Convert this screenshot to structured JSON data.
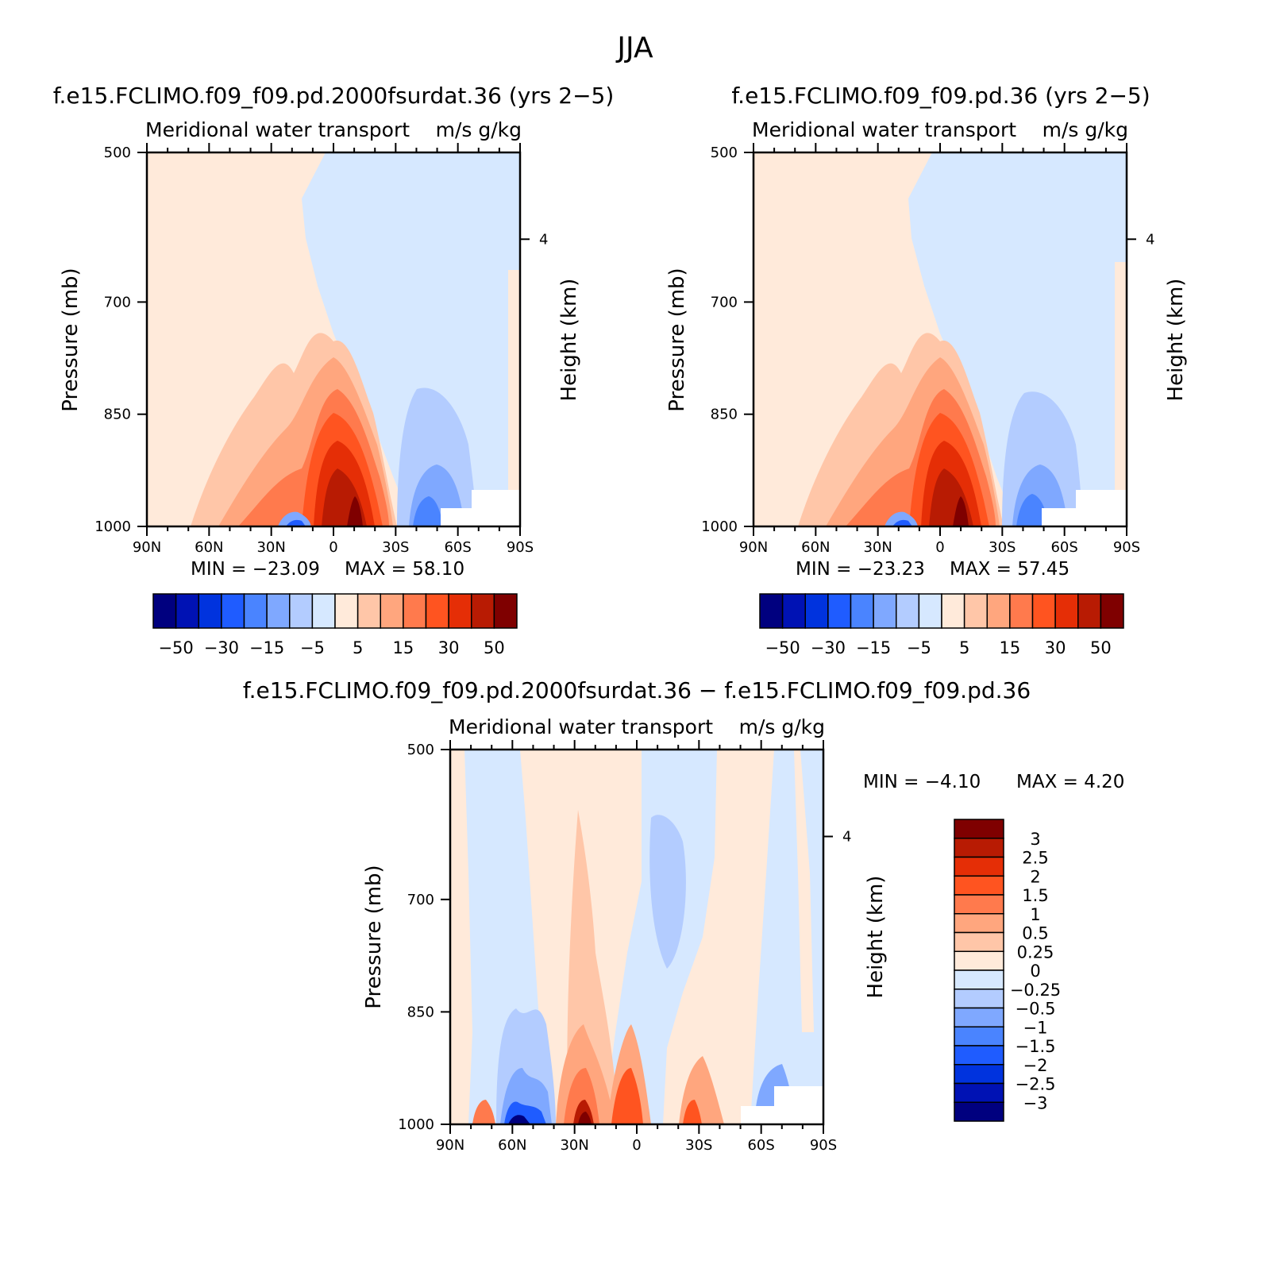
{
  "figure": {
    "title": "JJA"
  },
  "colors": {
    "fill_levels": [
      "#00007f",
      "#0012b4",
      "#0033de",
      "#1f5cff",
      "#4a84ff",
      "#7fa8ff",
      "#b3ccff",
      "#d6e8ff",
      "#ffeada",
      "#ffc6a8",
      "#ffa67e",
      "#ff7a4d",
      "#ff5420",
      "#e52e06",
      "#b81b03",
      "#7f0000"
    ]
  },
  "chart_data": [
    {
      "type": "heatmap",
      "id": "top-left",
      "title": "f.e15.FCLIMO.f09_f09.pd.2000fsurdat.36 (yrs 2−5)",
      "subtitle_left": "Meridional water transport",
      "subtitle_right": "m/s g/kg",
      "ylabel": "Pressure (mb)",
      "ylabel_right": "Height (km)",
      "x_tick_labels": [
        "90N",
        "60N",
        "30N",
        "0",
        "30S",
        "60S",
        "90S"
      ],
      "x_values": [
        90,
        60,
        30,
        0,
        -30,
        -60,
        -90
      ],
      "y_tick_labels": [
        "500",
        "700",
        "850",
        "1000"
      ],
      "y_values": [
        500,
        700,
        850,
        1000
      ],
      "y_right_tick_labels": [
        "4"
      ],
      "ylim": [
        500,
        1000
      ],
      "xlim": [
        90,
        -90
      ],
      "min_text": "MIN = −23.09",
      "max_text": "MAX =  58.10",
      "min": -23.09,
      "max": 58.1,
      "colorbar": {
        "orientation": "horizontal",
        "labels": [
          "−50",
          "−30",
          "−15",
          "−5",
          "5",
          "15",
          "30",
          "50"
        ]
      },
      "features": [
        {
          "kind": "blob",
          "lat": 0,
          "p": 1000,
          "value": 58.1
        },
        {
          "kind": "blob",
          "lat": -52,
          "p": 1000,
          "value": -20
        },
        {
          "kind": "blob",
          "lat": 18,
          "p": 1000,
          "value": -23.09
        }
      ]
    },
    {
      "type": "heatmap",
      "id": "top-right",
      "title": "f.e15.FCLIMO.f09_f09.pd.36 (yrs 2−5)",
      "subtitle_left": "Meridional water transport",
      "subtitle_right": "m/s g/kg",
      "ylabel": "Pressure (mb)",
      "ylabel_right": "Height (km)",
      "x_tick_labels": [
        "90N",
        "60N",
        "30N",
        "0",
        "30S",
        "60S",
        "90S"
      ],
      "x_values": [
        90,
        60,
        30,
        0,
        -30,
        -60,
        -90
      ],
      "y_tick_labels": [
        "500",
        "700",
        "850",
        "1000"
      ],
      "y_values": [
        500,
        700,
        850,
        1000
      ],
      "y_right_tick_labels": [
        "4"
      ],
      "ylim": [
        500,
        1000
      ],
      "xlim": [
        90,
        -90
      ],
      "min_text": "MIN = −23.23",
      "max_text": "MAX =  57.45",
      "min": -23.23,
      "max": 57.45,
      "colorbar": {
        "orientation": "horizontal",
        "labels": [
          "−50",
          "−30",
          "−15",
          "−5",
          "5",
          "15",
          "30",
          "50"
        ]
      },
      "features": [
        {
          "kind": "blob",
          "lat": 0,
          "p": 1000,
          "value": 57.45
        },
        {
          "kind": "blob",
          "lat": -45,
          "p": 1000,
          "value": -20
        },
        {
          "kind": "blob",
          "lat": 18,
          "p": 1000,
          "value": -23.23
        }
      ]
    },
    {
      "type": "heatmap",
      "id": "bottom",
      "title": "f.e15.FCLIMO.f09_f09.pd.2000fsurdat.36 − f.e15.FCLIMO.f09_f09.pd.36",
      "subtitle_left": "Meridional water transport",
      "subtitle_right": "m/s g/kg",
      "ylabel": "Pressure (mb)",
      "ylabel_right": "Height (km)",
      "x_tick_labels": [
        "90N",
        "60N",
        "30N",
        "0",
        "30S",
        "60S",
        "90S"
      ],
      "x_values": [
        90,
        60,
        30,
        0,
        -30,
        -60,
        -90
      ],
      "y_tick_labels": [
        "500",
        "700",
        "850",
        "1000"
      ],
      "y_values": [
        500,
        700,
        850,
        1000
      ],
      "y_right_tick_labels": [
        "4"
      ],
      "ylim": [
        500,
        1000
      ],
      "xlim": [
        90,
        -90
      ],
      "min_text": "MIN =  −4.10",
      "max_text": "MAX =   4.20",
      "min": -4.1,
      "max": 4.2,
      "colorbar": {
        "orientation": "vertical",
        "labels": [
          "3",
          "2.5",
          "2",
          "1.5",
          "1",
          "0.5",
          "0.25",
          "0",
          "−0.25",
          "−0.5",
          "−1",
          "−1.5",
          "−2",
          "−2.5",
          "−3"
        ]
      }
    }
  ]
}
